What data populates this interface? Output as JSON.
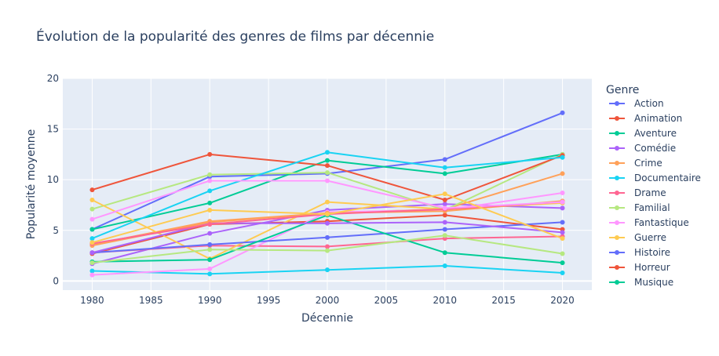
{
  "chart_data": {
    "type": "line",
    "title": "Évolution de la popularité des genres de films par décennie",
    "xlabel": "Décennie",
    "ylabel": "Popularité moyenne",
    "xlim": [
      1977.5,
      2022.5
    ],
    "ylim": [
      -0.9,
      20.0
    ],
    "xticks": [
      1980,
      1985,
      1990,
      1995,
      2000,
      2005,
      2010,
      2015,
      2020
    ],
    "yticks": [
      0,
      5,
      10,
      15,
      20
    ],
    "grid": true,
    "legend": {
      "title": "Genre",
      "placement": "right"
    },
    "x": [
      1980,
      1990,
      2000,
      2010,
      2020
    ],
    "series": [
      {
        "name": "Action",
        "color": "#636efa",
        "values": [
          5.1,
          10.3,
          10.6,
          12.0,
          16.6
        ]
      },
      {
        "name": "Animation",
        "color": "#EF553B",
        "values": [
          2.7,
          5.6,
          5.9,
          6.5,
          5.1
        ]
      },
      {
        "name": "Aventure",
        "color": "#00cc96",
        "values": [
          5.1,
          7.7,
          11.9,
          10.6,
          12.5
        ]
      },
      {
        "name": "Comédie",
        "color": "#ab63fa",
        "values": [
          1.7,
          4.7,
          7.0,
          7.6,
          7.2
        ]
      },
      {
        "name": "Crime",
        "color": "#FFA15A",
        "values": [
          3.6,
          5.9,
          6.7,
          7.1,
          10.6
        ]
      },
      {
        "name": "Documentaire",
        "color": "#19d3f3",
        "values": [
          1.0,
          0.7,
          1.1,
          1.5,
          0.8
        ]
      },
      {
        "name": "Drame",
        "color": "#FF6692",
        "values": [
          2.8,
          3.5,
          3.4,
          4.2,
          4.4
        ]
      },
      {
        "name": "Familial",
        "color": "#B6E880",
        "values": [
          7.1,
          10.5,
          10.7,
          7.0,
          12.5
        ]
      },
      {
        "name": "Fantastique",
        "color": "#FF97FF",
        "values": [
          0.6,
          1.2,
          6.8,
          7.0,
          8.7
        ]
      },
      {
        "name": "Guerre",
        "color": "#FECB52",
        "values": [
          8.0,
          2.2,
          7.8,
          7.1,
          7.7
        ]
      },
      {
        "name": "Histoire",
        "color": "#636efa",
        "values": [
          2.8,
          3.6,
          4.3,
          5.1,
          5.8
        ]
      },
      {
        "name": "Horreur",
        "color": "#EF553B",
        "values": [
          9.0,
          12.5,
          11.4,
          8.0,
          12.4
        ]
      },
      {
        "name": "Musique",
        "color": "#00cc96",
        "values": [
          1.9,
          2.1,
          6.5,
          2.8,
          1.8
        ]
      },
      {
        "name": "",
        "color": "#ab63fa",
        "values": [
          2.8,
          5.7,
          5.7,
          5.8,
          4.8
        ]
      },
      {
        "name": "",
        "color": "#FFA15A",
        "values": [
          3.5,
          5.8,
          6.7,
          6.9,
          7.9
        ]
      },
      {
        "name": "",
        "color": "#19d3f3",
        "values": [
          4.2,
          8.9,
          12.7,
          11.2,
          12.2
        ]
      },
      {
        "name": "",
        "color": "#FF6692",
        "values": [
          3.7,
          5.6,
          6.6,
          7.1,
          7.8
        ]
      },
      {
        "name": "",
        "color": "#B6E880",
        "values": [
          1.8,
          3.1,
          3.0,
          4.5,
          2.7
        ]
      },
      {
        "name": "",
        "color": "#FF97FF",
        "values": [
          6.1,
          9.9,
          9.9,
          7.2,
          7.8
        ]
      },
      {
        "name": "",
        "color": "#FECB52",
        "values": [
          3.8,
          7.0,
          6.6,
          8.6,
          4.2
        ]
      }
    ]
  }
}
